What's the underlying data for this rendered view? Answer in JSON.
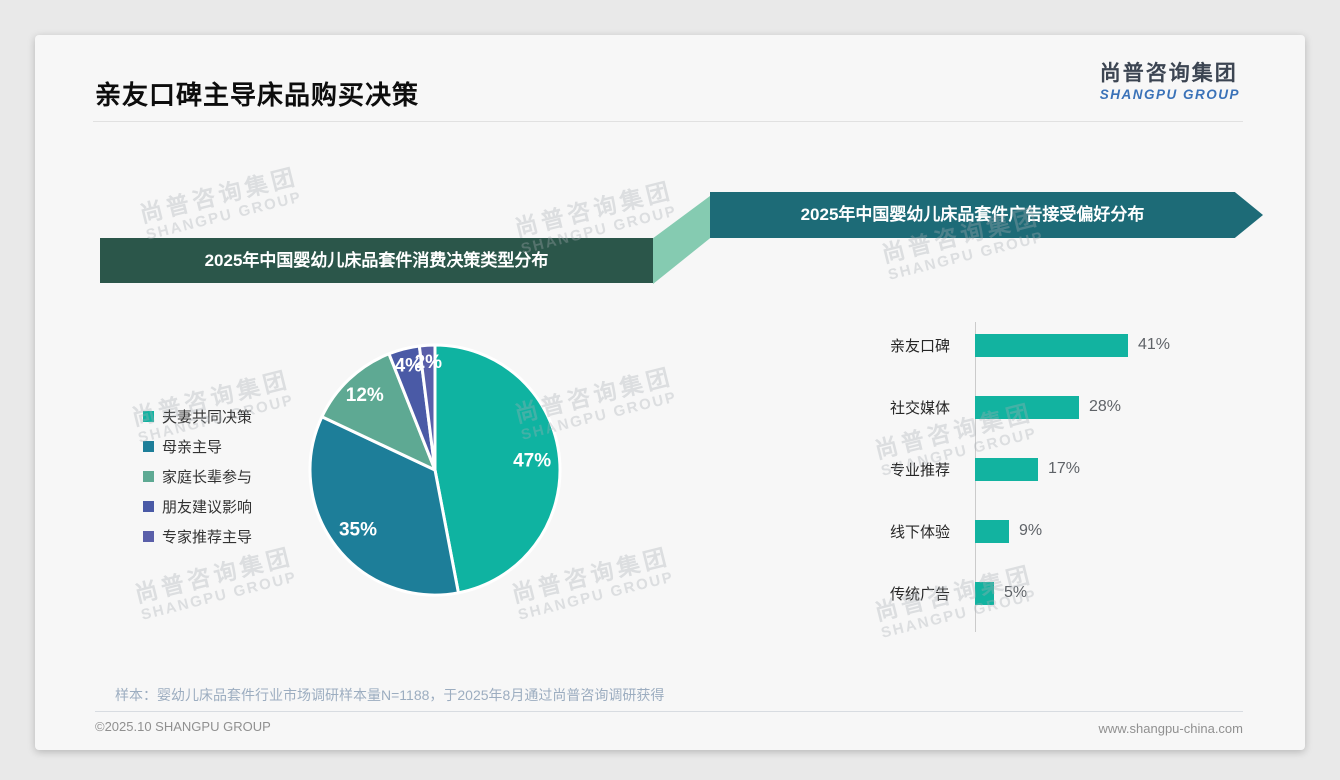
{
  "page": {
    "title": "亲友口碑主导床品购买决策",
    "logo": {
      "cn": "尚普咨询集团",
      "en": "SHANGPU GROUP"
    },
    "watermark": {
      "cn": "尚普咨询集团",
      "en": "SHANGPU GROUP"
    },
    "sample_note": "样本：婴幼儿床品套件行业市场调研样本量N=1188，于2025年8月通过尚普咨询调研获得",
    "footer": {
      "left": "©2025.10 SHANGPU GROUP",
      "right": "www.shangpu-china.com"
    }
  },
  "colors": {
    "accent_teal": "#12b3a0",
    "banner_left_bg": "#2b564a",
    "banner_right_bg": "#1d6b77",
    "banner_connector": "#85cbb1",
    "logo_blue": "#3a72b8",
    "note_gray_blue": "#9cadc0"
  },
  "chart_data": [
    {
      "type": "pie",
      "title": "2025年中国婴幼儿床品套件消费决策类型分布",
      "categories": [
        "夫妻共同决策",
        "母亲主导",
        "家庭长辈参与",
        "朋友建议影响",
        "专家推荐主导"
      ],
      "values": [
        47,
        35,
        12,
        4,
        2
      ],
      "unit": "%",
      "slice_colors": [
        "#0fb3a1",
        "#1d7e99",
        "#5ea993",
        "#4a5aa6",
        "#5a5fa9"
      ],
      "start_angle_deg": 0,
      "direction": "clockwise",
      "legend_position": "left",
      "data_labels": "inside"
    },
    {
      "type": "bar",
      "title": "2025年中国婴幼儿床品套件广告接受偏好分布",
      "orientation": "horizontal",
      "categories": [
        "亲友口碑",
        "社交媒体",
        "专业推荐",
        "线下体验",
        "传统广告"
      ],
      "values": [
        41,
        28,
        17,
        9,
        5
      ],
      "unit": "%",
      "bar_color": "#12b3a0",
      "xlim": [
        0,
        45
      ],
      "data_labels": "end"
    }
  ]
}
